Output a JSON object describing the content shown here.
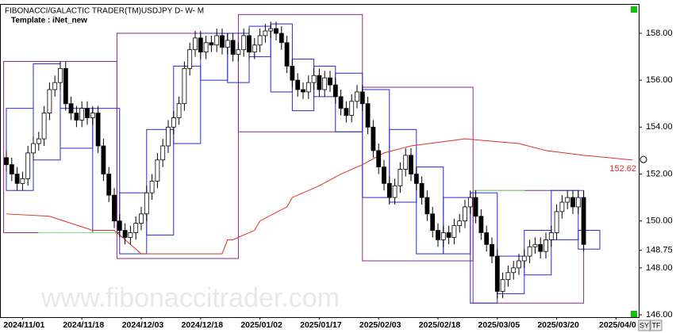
{
  "chart_data": {
    "type": "candlestick",
    "title": "FIBONACCI/GALACTIC TRADER(TM)",
    "subtitle": "USDJPY D- W- M",
    "template": "Template : iNet_new",
    "watermark": "www.fibonaccitrader.com",
    "buttons": [
      "SY",
      "TF"
    ],
    "ylim": [
      145.9,
      159.25
    ],
    "yticks": [
      {
        "value": 158,
        "label": "158.00"
      },
      {
        "value": 156,
        "label": "156.00"
      },
      {
        "value": 154,
        "label": "154.00"
      },
      {
        "value": 152,
        "label": "152.00"
      },
      {
        "value": 150,
        "label": "150.00"
      },
      {
        "value": 148.75,
        "label": "148.75"
      },
      {
        "value": 148,
        "label": "148.00"
      },
      {
        "value": 146,
        "label": "146.00"
      }
    ],
    "categories": [
      null,
      null,
      null,
      "2024/11/01",
      null,
      null,
      null,
      null,
      null,
      null,
      null,
      null,
      null,
      null,
      "2024/11/18",
      null,
      null,
      null,
      null,
      null,
      null,
      null,
      null,
      null,
      null,
      "2024/12/03",
      null,
      null,
      null,
      null,
      null,
      null,
      null,
      null,
      null,
      null,
      "2024/12/18",
      null,
      null,
      null,
      null,
      null,
      null,
      null,
      null,
      null,
      null,
      "2025/01/02",
      null,
      null,
      null,
      null,
      null,
      null,
      null,
      null,
      null,
      null,
      "2025/01/17",
      null,
      null,
      null,
      null,
      null,
      null,
      null,
      null,
      null,
      null,
      "2025/02/03",
      null,
      null,
      null,
      null,
      null,
      null,
      null,
      null,
      null,
      null,
      "2025/02/18",
      null,
      null,
      null,
      null,
      null,
      null,
      null,
      null,
      null,
      null,
      "2025/03/05",
      null,
      null,
      null,
      null,
      null,
      null,
      null,
      null,
      null,
      null,
      "2025/03/20",
      null,
      null,
      null,
      null,
      null,
      null,
      null,
      null,
      null,
      null,
      "2025/04/0",
      null,
      null,
      null
    ],
    "series": [
      {
        "name": "USDJPY",
        "up_color": "#ffffff",
        "down_color": "#000000",
        "open": [
          152.7,
          152.4,
          152.0,
          151.6,
          151.8,
          152.9,
          153.3,
          153.5,
          154.6,
          155.6,
          155.9,
          156.5,
          155.0,
          154.6,
          154.3,
          154.8,
          154.4,
          154.6,
          153.2,
          152.0,
          151.1,
          150.0,
          149.6,
          149.3,
          149.5,
          149.9,
          150.3,
          151.2,
          151.7,
          152.6,
          153.2,
          154.0,
          154.4,
          155.0,
          156.5,
          157.3,
          157.8,
          157.2,
          157.6,
          157.5,
          157.9,
          157.4,
          157.7,
          157.1,
          157.3,
          157.9,
          157.2,
          157.5,
          157.9,
          158.1,
          158.2,
          158.0,
          157.6,
          156.6,
          156.0,
          155.6,
          155.5,
          155.9,
          156.2,
          155.6,
          156.1,
          155.8,
          155.3,
          154.8,
          154.5,
          155.1,
          155.5,
          155.0,
          154.0,
          153.0,
          152.3,
          151.6,
          151.0,
          151.5,
          152.2,
          152.8,
          152.0,
          151.6,
          151.0,
          150.3,
          149.6,
          149.2,
          149.5,
          149.3,
          149.8,
          150.0,
          150.6,
          151.0,
          150.2,
          149.5,
          149.0,
          148.5,
          147.0,
          147.5,
          147.8,
          148.0,
          148.3,
          148.5,
          148.9,
          149.0,
          148.7,
          149.2,
          149.5,
          150.4,
          150.8,
          151.0,
          150.6,
          151.0,
          null,
          null,
          null,
          null,
          null,
          null,
          null,
          null,
          null
        ],
        "high": [
          153.0,
          152.7,
          152.3,
          152.1,
          153.2,
          153.6,
          153.8,
          154.9,
          155.9,
          156.2,
          156.8,
          156.8,
          155.3,
          154.9,
          155.1,
          155.1,
          154.9,
          154.9,
          153.5,
          152.3,
          151.4,
          150.3,
          149.9,
          149.8,
          150.2,
          150.6,
          151.5,
          152.0,
          152.9,
          153.5,
          154.3,
          154.7,
          155.3,
          156.8,
          157.6,
          158.1,
          158.1,
          157.9,
          157.9,
          158.2,
          158.2,
          158.0,
          158.0,
          157.6,
          158.2,
          158.2,
          157.8,
          158.2,
          158.4,
          158.5,
          158.5,
          158.3,
          157.9,
          156.9,
          156.3,
          155.9,
          156.2,
          156.5,
          156.5,
          156.4,
          156.4,
          156.1,
          155.6,
          155.1,
          155.4,
          155.8,
          155.8,
          155.3,
          154.3,
          153.3,
          152.6,
          151.9,
          151.8,
          152.5,
          153.1,
          153.1,
          152.3,
          151.9,
          151.3,
          150.6,
          149.9,
          149.8,
          149.8,
          150.1,
          150.3,
          150.9,
          151.3,
          151.3,
          150.5,
          149.8,
          149.3,
          148.8,
          147.8,
          148.1,
          148.3,
          148.6,
          148.8,
          149.2,
          149.3,
          149.3,
          149.5,
          149.8,
          150.7,
          151.1,
          151.3,
          151.3,
          151.3,
          151.3,
          null,
          null,
          null,
          null,
          null,
          null,
          null,
          null,
          null
        ],
        "low": [
          152.1,
          151.7,
          151.3,
          151.3,
          151.5,
          152.6,
          153.0,
          153.2,
          154.3,
          155.3,
          155.6,
          154.7,
          154.3,
          154.0,
          154.0,
          154.1,
          154.1,
          152.9,
          151.7,
          150.8,
          149.7,
          149.3,
          149.0,
          149.0,
          149.2,
          149.6,
          150.0,
          150.9,
          151.4,
          152.3,
          152.9,
          153.7,
          154.1,
          154.7,
          156.2,
          157.0,
          156.9,
          156.9,
          157.2,
          157.2,
          157.1,
          157.1,
          156.8,
          156.8,
          157.0,
          156.9,
          156.9,
          157.2,
          157.6,
          157.8,
          157.7,
          157.3,
          156.3,
          155.7,
          155.3,
          155.2,
          155.2,
          155.6,
          155.3,
          155.3,
          155.5,
          155.0,
          154.5,
          154.2,
          154.2,
          154.8,
          154.7,
          153.7,
          152.7,
          152.0,
          151.3,
          150.7,
          150.7,
          151.2,
          151.9,
          151.7,
          151.3,
          150.7,
          150.0,
          149.3,
          148.9,
          148.9,
          149.0,
          149.0,
          149.5,
          149.7,
          150.3,
          149.9,
          149.2,
          148.7,
          148.2,
          146.7,
          146.7,
          147.2,
          147.5,
          147.7,
          148.0,
          148.2,
          148.6,
          148.4,
          148.4,
          148.9,
          149.2,
          150.1,
          150.5,
          150.3,
          150.3,
          148.7,
          null,
          null,
          null,
          null,
          null,
          null,
          null,
          null,
          null
        ],
        "close": [
          152.4,
          152.0,
          151.6,
          151.8,
          152.9,
          153.3,
          153.5,
          154.6,
          155.6,
          155.9,
          156.5,
          155.0,
          154.6,
          154.3,
          154.8,
          154.4,
          154.6,
          153.2,
          152.0,
          151.1,
          150.0,
          149.6,
          149.3,
          149.5,
          149.9,
          150.3,
          151.2,
          151.7,
          152.6,
          153.2,
          154.0,
          154.4,
          155.0,
          156.5,
          157.3,
          157.8,
          157.2,
          157.6,
          157.5,
          157.9,
          157.4,
          157.7,
          157.1,
          157.3,
          157.9,
          157.2,
          157.5,
          157.9,
          158.1,
          158.2,
          158.0,
          157.6,
          156.6,
          156.0,
          155.6,
          155.5,
          155.9,
          156.2,
          155.6,
          156.1,
          155.8,
          155.3,
          154.8,
          154.5,
          155.1,
          155.5,
          155.0,
          154.0,
          153.0,
          152.3,
          151.6,
          151.0,
          151.5,
          152.2,
          152.8,
          152.0,
          151.6,
          151.0,
          150.3,
          149.6,
          149.2,
          149.5,
          149.3,
          149.8,
          150.0,
          150.6,
          151.0,
          150.2,
          149.5,
          149.0,
          148.5,
          147.0,
          147.5,
          147.8,
          148.0,
          148.3,
          148.5,
          148.9,
          149.0,
          148.7,
          149.2,
          149.5,
          150.4,
          150.8,
          151.0,
          150.6,
          151.0,
          149.0,
          null,
          null,
          null,
          null,
          null,
          null,
          null,
          null,
          null
        ]
      }
    ],
    "lines": [
      {
        "color": "#e03020",
        "x": [
          0,
          8,
          16,
          20,
          25,
          40,
          41,
          42,
          46,
          47,
          52,
          53,
          58,
          62,
          66,
          70,
          75,
          85,
          95,
          100,
          107,
          116
        ],
        "values": [
          150.3,
          150.2,
          149.6,
          149.6,
          148.6,
          148.6,
          149.2,
          149.2,
          149.6,
          150.0,
          150.6,
          151.0,
          151.5,
          152.0,
          152.4,
          152.9,
          153.2,
          153.5,
          153.3,
          153.0,
          152.8,
          152.6
        ],
        "last_label": 152.62
      }
    ],
    "boxes": [
      {
        "color": "#8a2a8a",
        "x": [
          -0.5,
          20.5
        ],
        "y": [
          156.8,
          149.5
        ]
      },
      {
        "color": "#8a2a8a",
        "x": [
          20.5,
          43
        ],
        "y": [
          158.0,
          148.4
        ]
      },
      {
        "color": "#8a2a8a",
        "x": [
          43,
          66
        ],
        "y": [
          158.8,
          153.8
        ]
      },
      {
        "color": "#8a2a8a",
        "x": [
          66,
          86.5
        ],
        "y": [
          155.7,
          148.3
        ]
      },
      {
        "color": "#8a2a8a",
        "x": [
          86.5,
          107
        ],
        "y": [
          151.3,
          146.5
        ]
      },
      {
        "color": "#2a2ad0",
        "x": [
          0,
          5
        ],
        "y": [
          154.8,
          151.3
        ]
      },
      {
        "color": "#2a2ad0",
        "x": [
          5,
          10
        ],
        "y": [
          156.7,
          152.6
        ]
      },
      {
        "color": "#2a2ad0",
        "x": [
          10,
          16
        ],
        "y": [
          154.8,
          153.1
        ]
      },
      {
        "color": "#2a2ad0",
        "x": [
          16,
          21
        ],
        "y": [
          154.8,
          149.5
        ]
      },
      {
        "color": "#2a2ad0",
        "x": [
          21,
          26
        ],
        "y": [
          151.2,
          148.6
        ]
      },
      {
        "color": "#2a2ad0",
        "x": [
          26,
          31
        ],
        "y": [
          153.9,
          149.4
        ]
      },
      {
        "color": "#2a2ad0",
        "x": [
          31,
          36
        ],
        "y": [
          156.6,
          153.3
        ]
      },
      {
        "color": "#2a2ad0",
        "x": [
          36,
          41
        ],
        "y": [
          158.0,
          156.0
        ]
      },
      {
        "color": "#2a2ad0",
        "x": [
          41,
          45
        ],
        "y": [
          158.0,
          155.9
        ]
      },
      {
        "color": "#2a2ad0",
        "x": [
          45,
          49
        ],
        "y": [
          158.3,
          157.0
        ]
      },
      {
        "color": "#2a2ad0",
        "x": [
          49,
          53
        ],
        "y": [
          158.4,
          155.5
        ]
      },
      {
        "color": "#2a2ad0",
        "x": [
          53,
          57
        ],
        "y": [
          156.9,
          154.7
        ]
      },
      {
        "color": "#2a2ad0",
        "x": [
          57,
          61
        ],
        "y": [
          156.6,
          155.3
        ]
      },
      {
        "color": "#2a2ad0",
        "x": [
          61,
          66
        ],
        "y": [
          156.3,
          153.8
        ]
      },
      {
        "color": "#2a2ad0",
        "x": [
          66,
          71
        ],
        "y": [
          155.6,
          151.0
        ]
      },
      {
        "color": "#2a2ad0",
        "x": [
          71,
          76
        ],
        "y": [
          153.9,
          150.8
        ]
      },
      {
        "color": "#2a2ad0",
        "x": [
          76,
          81
        ],
        "y": [
          152.3,
          148.6
        ]
      },
      {
        "color": "#2a2ad0",
        "x": [
          81,
          86
        ],
        "y": [
          151.0,
          148.6
        ]
      },
      {
        "color": "#2a2ad0",
        "x": [
          86,
          91
        ],
        "y": [
          151.2,
          146.5
        ]
      },
      {
        "color": "#2a2ad0",
        "x": [
          91,
          96
        ],
        "y": [
          148.5,
          146.9
        ]
      },
      {
        "color": "#2a2ad0",
        "x": [
          96,
          101
        ],
        "y": [
          149.6,
          147.7
        ]
      },
      {
        "color": "#2a2ad0",
        "x": [
          101,
          106
        ],
        "y": [
          151.3,
          149.2
        ]
      },
      {
        "color": "#2a2ad0",
        "x": [
          106,
          110
        ],
        "y": [
          149.6,
          148.8
        ]
      },
      {
        "color": "#80e080",
        "x": [
          6,
          20.5
        ],
        "y": [
          149.5,
          149.5
        ]
      },
      {
        "color": "#80e080",
        "x": [
          86.5,
          96
        ],
        "y": [
          151.3,
          151.3
        ]
      }
    ]
  }
}
